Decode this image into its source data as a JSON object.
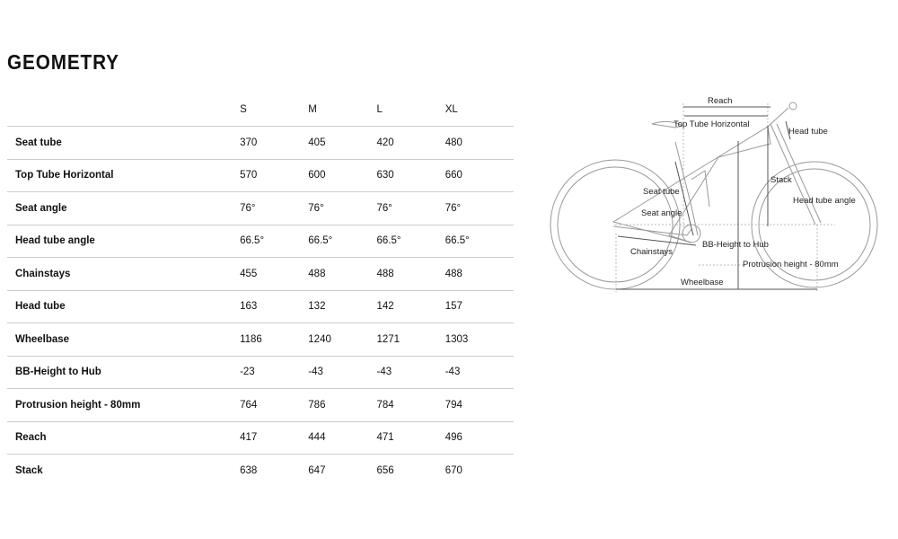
{
  "title": "GEOMETRY",
  "sizes": [
    "S",
    "M",
    "L",
    "XL"
  ],
  "rows": [
    {
      "label": "Seat tube",
      "values": [
        "370",
        "405",
        "420",
        "480"
      ]
    },
    {
      "label": "Top Tube Horizontal",
      "values": [
        "570",
        "600",
        "630",
        "660"
      ]
    },
    {
      "label": "Seat angle",
      "values": [
        "76°",
        "76°",
        "76°",
        "76°"
      ]
    },
    {
      "label": "Head tube angle",
      "values": [
        "66.5°",
        "66.5°",
        "66.5°",
        "66.5°"
      ]
    },
    {
      "label": "Chainstays",
      "values": [
        "455",
        "488",
        "488",
        "488"
      ]
    },
    {
      "label": "Head tube",
      "values": [
        "163",
        "132",
        "142",
        "157"
      ]
    },
    {
      "label": "Wheelbase",
      "values": [
        "1186",
        "1240",
        "1271",
        "1303"
      ]
    },
    {
      "label": "BB-Height to Hub",
      "values": [
        "-23",
        "-43",
        "-43",
        "-43"
      ]
    },
    {
      "label": "Protrusion height - 80mm",
      "values": [
        "764",
        "786",
        "784",
        "794"
      ]
    },
    {
      "label": "Reach",
      "values": [
        "417",
        "444",
        "471",
        "496"
      ]
    },
    {
      "label": "Stack",
      "values": [
        "638",
        "647",
        "656",
        "670"
      ]
    }
  ],
  "diagram": {
    "reach": "Reach",
    "top_tube": "Top Tube Horizontal",
    "head_tube": "Head tube",
    "stack": "Stack",
    "seat_tube": "Seat tube",
    "seat_angle": "Seat angle",
    "head_tube_angle": "Head tube angle",
    "chainstays": "Chainstays",
    "bb_height": "BB-Height to Hub",
    "protrusion": "Protrusion height - 80mm",
    "wheelbase": "Wheelbase"
  }
}
